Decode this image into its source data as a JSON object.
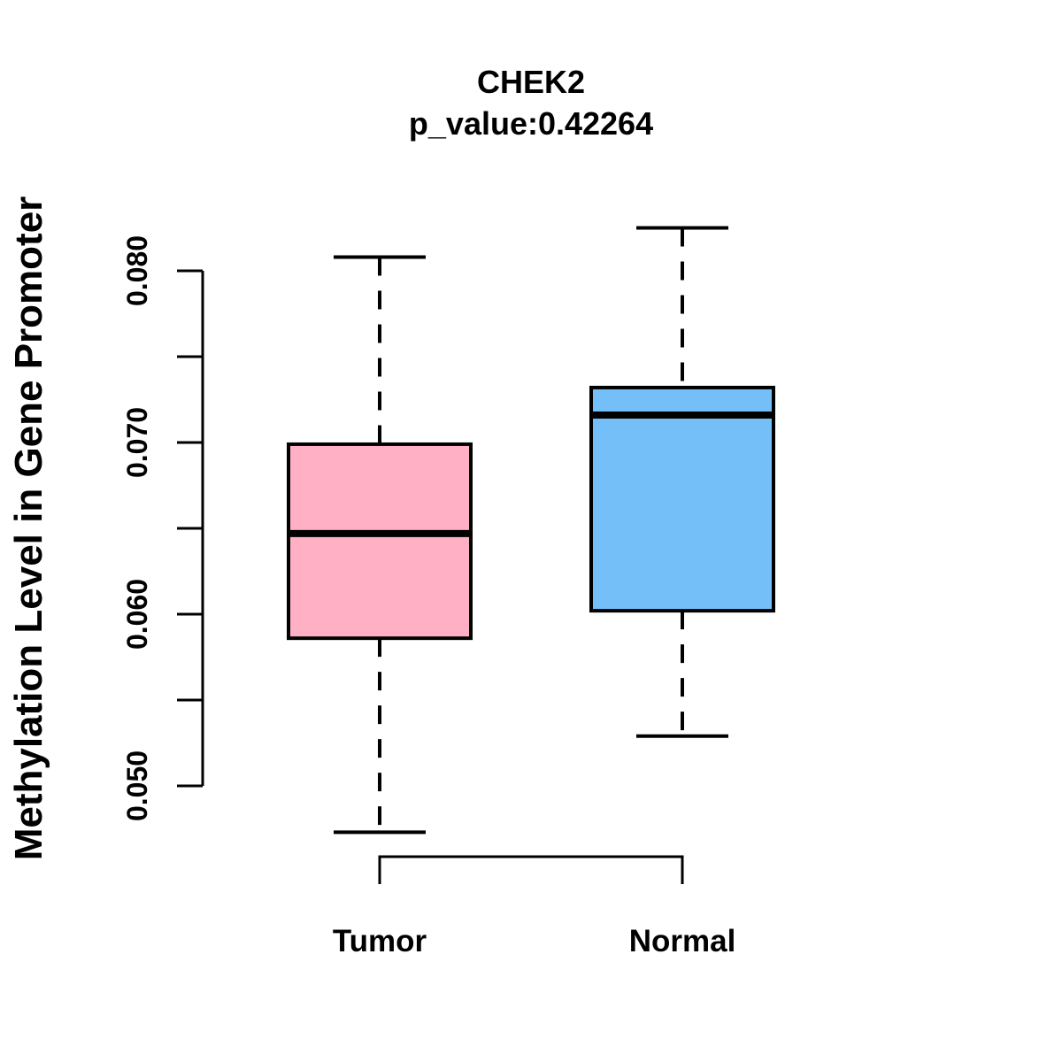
{
  "figure": {
    "background_color": "#FFFFFF",
    "foreground_color": "#000000"
  },
  "chart_data": {
    "type": "boxplot",
    "title": "CHEK2",
    "subtitle": "p_value:0.42264",
    "ylabel": "Methylation Level in Gene Promoter",
    "xlabel": "",
    "categories": [
      "Tumor",
      "Normal"
    ],
    "series": [
      {
        "name": "Tumor",
        "fill_color": "#FFB0C4",
        "stroke_color": "#000000",
        "whisker_low": 0.0473,
        "q1": 0.0586,
        "median": 0.0647,
        "q3": 0.0699,
        "whisker_high": 0.0808,
        "outliers": []
      },
      {
        "name": "Normal",
        "fill_color": "#74BFF7",
        "stroke_color": "#000000",
        "whisker_low": 0.0529,
        "q1": 0.0602,
        "median": 0.0716,
        "q3": 0.0732,
        "whisker_high": 0.0825,
        "outliers": []
      }
    ],
    "y_axis": {
      "min": 0.05,
      "max": 0.08,
      "tick_step": 0.005,
      "ticks": [
        {
          "value": 0.05,
          "label": "0.050"
        },
        {
          "value": 0.055,
          "label": ""
        },
        {
          "value": 0.06,
          "label": "0.060"
        },
        {
          "value": 0.065,
          "label": ""
        },
        {
          "value": 0.07,
          "label": "0.070"
        },
        {
          "value": 0.075,
          "label": ""
        },
        {
          "value": 0.08,
          "label": "0.080"
        }
      ]
    },
    "x_axis": {
      "bracket": true
    },
    "layout_hints": {
      "grid": false,
      "legend": "none",
      "whisker_style": "dashed",
      "tick_label_rotation": 90,
      "title_lines": 2
    }
  }
}
